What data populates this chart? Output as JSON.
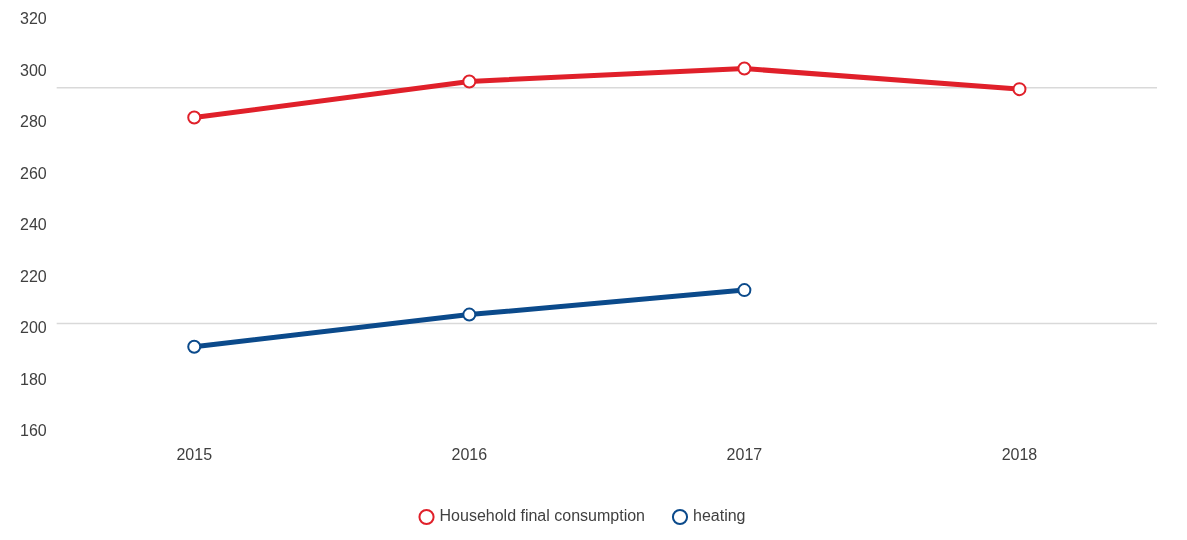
{
  "chart_data": {
    "type": "line",
    "categories": [
      "2015",
      "2016",
      "2017",
      "2018"
    ],
    "series": [
      {
        "name": "Household final consumption",
        "color": "#e0202a",
        "values": [
          282,
          296,
          301,
          293
        ]
      },
      {
        "name": "heating",
        "color": "#0b4a8b",
        "values": [
          193,
          205.5,
          215,
          null
        ]
      }
    ],
    "ylim": [
      160,
      320
    ],
    "yticks": [
      160,
      180,
      200,
      220,
      240,
      260,
      280,
      300,
      320
    ],
    "ref_lines": [
      {
        "axis": "y",
        "value": 293.5,
        "color": "#d9d9d9"
      },
      {
        "axis": "y",
        "value": 202,
        "color": "#d9d9d9"
      }
    ],
    "grid": false,
    "legend": "bottom",
    "marker": "circle",
    "line_style": "solid"
  }
}
